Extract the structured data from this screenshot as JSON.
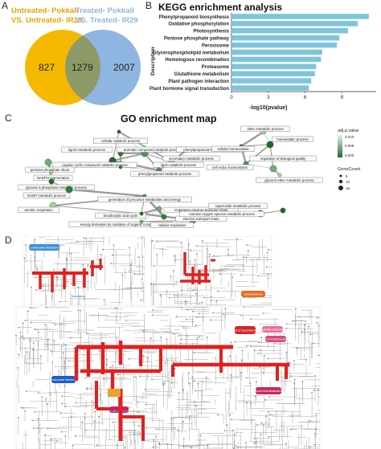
{
  "panels": {
    "a": "A",
    "b": "B",
    "c": "C",
    "d": "D"
  },
  "venn": {
    "left_label_line1": "Untreated- Pokkali",
    "left_label_line2": "VS. Untreated- IR29",
    "right_label_line1": "Treated- Pokkali",
    "right_label_line2": "VS. Treated- IR29",
    "left_only": "827",
    "overlap": "1279",
    "right_only": "2007",
    "colors": {
      "left": "#f5b800",
      "right": "#8fb6e0",
      "overlap": "#8e9a66"
    }
  },
  "kegg": {
    "title": "KEGG enrichment analysis",
    "ylabel": "Description",
    "xlabel": "-log10(pvalue)"
  },
  "chart_data": {
    "type": "bar",
    "orientation": "horizontal",
    "categories": [
      "Phenylpropanoid biosynthesis",
      "Oxidative phosphorylation",
      "Photosynthesis",
      "Pentose phosphate pathway",
      "Peroxisome",
      "Glycerophospholipid metabolism",
      "Homologous recombination",
      "Proteasome",
      "Glutathione metabolism",
      "Plant pathogen interaction",
      "Plant hormone signal transduction"
    ],
    "values": [
      11.2,
      10.3,
      9.5,
      8.8,
      8.6,
      7.4,
      7.3,
      6.9,
      6.8,
      6.5,
      6.3
    ],
    "xlabel": "-log10(pvalue)",
    "ylabel": "Description",
    "xticks": [
      0,
      3,
      6,
      9
    ],
    "xlim": [
      0,
      11.8
    ],
    "bar_color": "#7ec4dc",
    "title": "KEGG enrichment analysis"
  },
  "go": {
    "title": "GO enrichment map",
    "nodes": [
      "cellular catabolic process",
      "lignin metabolic process",
      "aromatic compound catabolic process",
      "phenylpropanoid metabolic process",
      "secondary metabolic process",
      "organic cyclic compound catabolic process",
      "lignin catabolic process",
      "phenylpropanoid catabolic process",
      "pentose-phosphate shunt",
      "NADPH regeneration",
      "glucose 6-phosphate metabolic process",
      "NADP metabolic process",
      "generation of precursor metabolites and energy",
      "tricarboxylic acid cycle",
      "aerobic respiration",
      "energy derivation by oxidation of organic compounds",
      "respiratory electron transport chain",
      "electron transport chain",
      "cellular respiration",
      "other metabolic process",
      "homeostatic process",
      "cellular homeostasis",
      "cell redox homeostasis",
      "regulation of biological quality",
      "glycerol ether metabolic process",
      "superoxide metabolic process",
      "reactive oxygen species metabolic process"
    ],
    "legend_padj_title": "adj.p.value",
    "legend_padj_ticks": [
      "0.010",
      "0.005",
      "0.000"
    ],
    "legend_count_title": "GeneCount",
    "legend_count_values": [
      "5",
      "10",
      "15"
    ]
  },
  "maps": {
    "box1_label": "Carbohydrate Metabolism",
    "box2_label": "Biosynthesis of Secondary Metabolites",
    "box3_label": "Lipid Metabolism",
    "box4_label": "Nucleotide Metabolism",
    "box5_label": "Metabolism of Cofactors and Vitamins",
    "box6_label": "Amino Acid Metabolism",
    "box7_label": "Energy Metabolism"
  }
}
